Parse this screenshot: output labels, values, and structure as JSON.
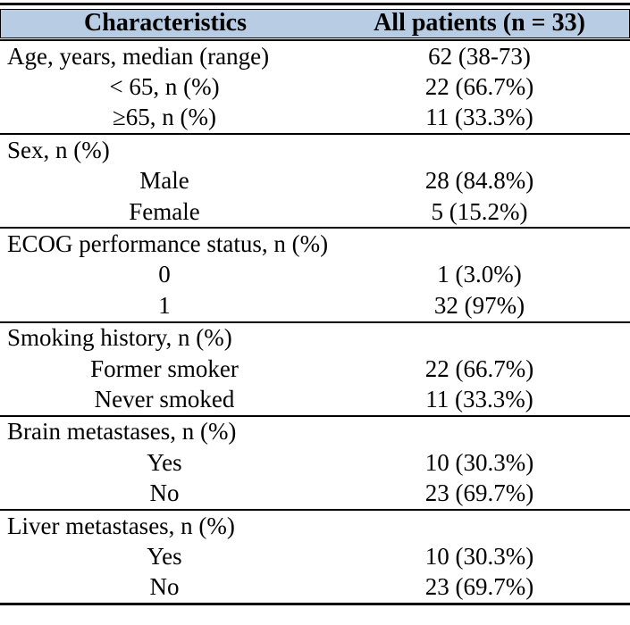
{
  "colors": {
    "header_bg": "#b8cce4",
    "rule": "#000000",
    "text": "#000000"
  },
  "table": {
    "header": {
      "col1": "Characteristics",
      "col2": "All patients (n = 33)"
    },
    "sections": [
      {
        "rows": [
          {
            "label": "Age, years, median (range)",
            "value": "62 (38-73)"
          },
          {
            "label": "< 65, n (%)",
            "value": "22 (66.7%)"
          },
          {
            "label": "≥65, n (%)",
            "value": "11 (33.3%)"
          }
        ]
      },
      {
        "rows": [
          {
            "label": "Sex, n (%)",
            "value": ""
          },
          {
            "label": "Male",
            "value": "28 (84.8%)"
          },
          {
            "label": "Female",
            "value": "5 (15.2%)"
          }
        ]
      },
      {
        "rows": [
          {
            "label": "ECOG performance status, n (%)",
            "value": ""
          },
          {
            "label": "0",
            "value": "1 (3.0%)"
          },
          {
            "label": "1",
            "value": "32 (97%)"
          }
        ]
      },
      {
        "rows": [
          {
            "label": "Smoking history, n (%)",
            "value": ""
          },
          {
            "label": "Former smoker",
            "value": "22 (66.7%)"
          },
          {
            "label": "Never smoked",
            "value": "11 (33.3%)"
          }
        ]
      },
      {
        "rows": [
          {
            "label": "Brain metastases, n (%)",
            "value": ""
          },
          {
            "label": "Yes",
            "value": "10 (30.3%)"
          },
          {
            "label": "No",
            "value": "23 (69.7%)"
          }
        ]
      },
      {
        "rows": [
          {
            "label": "Liver metastases, n (%)",
            "value": ""
          },
          {
            "label": "Yes",
            "value": "10 (30.3%)"
          },
          {
            "label": "No",
            "value": "23 (69.7%)"
          }
        ]
      }
    ]
  }
}
